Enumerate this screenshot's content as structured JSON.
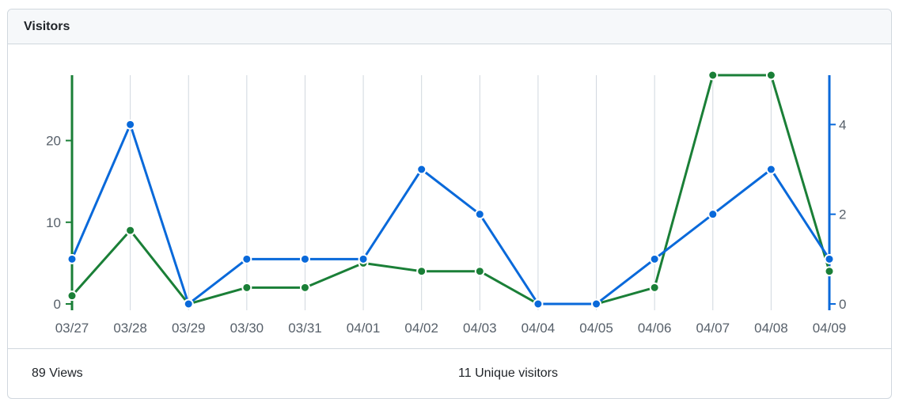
{
  "header": {
    "title": "Visitors"
  },
  "footer": {
    "views_count": "89",
    "views_label": "Views",
    "unique_count": "11",
    "unique_label": "Unique visitors"
  },
  "chart_data": {
    "type": "line",
    "categories": [
      "03/27",
      "03/28",
      "03/29",
      "03/30",
      "03/31",
      "04/01",
      "04/02",
      "04/03",
      "04/04",
      "04/05",
      "04/06",
      "04/07",
      "04/08",
      "04/09"
    ],
    "series": [
      {
        "name": "Views",
        "axis": "left",
        "color": "#1a7f37",
        "values": [
          1,
          9,
          0,
          2,
          2,
          5,
          4,
          4,
          0,
          0,
          2,
          28,
          28,
          4
        ]
      },
      {
        "name": "Unique visitors",
        "axis": "right",
        "color": "#0969da",
        "values": [
          1,
          4,
          0,
          1,
          1,
          1,
          3,
          2,
          0,
          0,
          1,
          2,
          3,
          1
        ]
      }
    ],
    "y_left": {
      "ticks": [
        0,
        10,
        20
      ],
      "range": [
        0,
        28
      ],
      "color": "#1a7f37"
    },
    "y_right": {
      "ticks": [
        0,
        2,
        4
      ],
      "range": [
        0,
        5.1
      ],
      "color": "#0969da"
    },
    "grid": "vertical",
    "xlabel": "",
    "ylabel": ""
  }
}
